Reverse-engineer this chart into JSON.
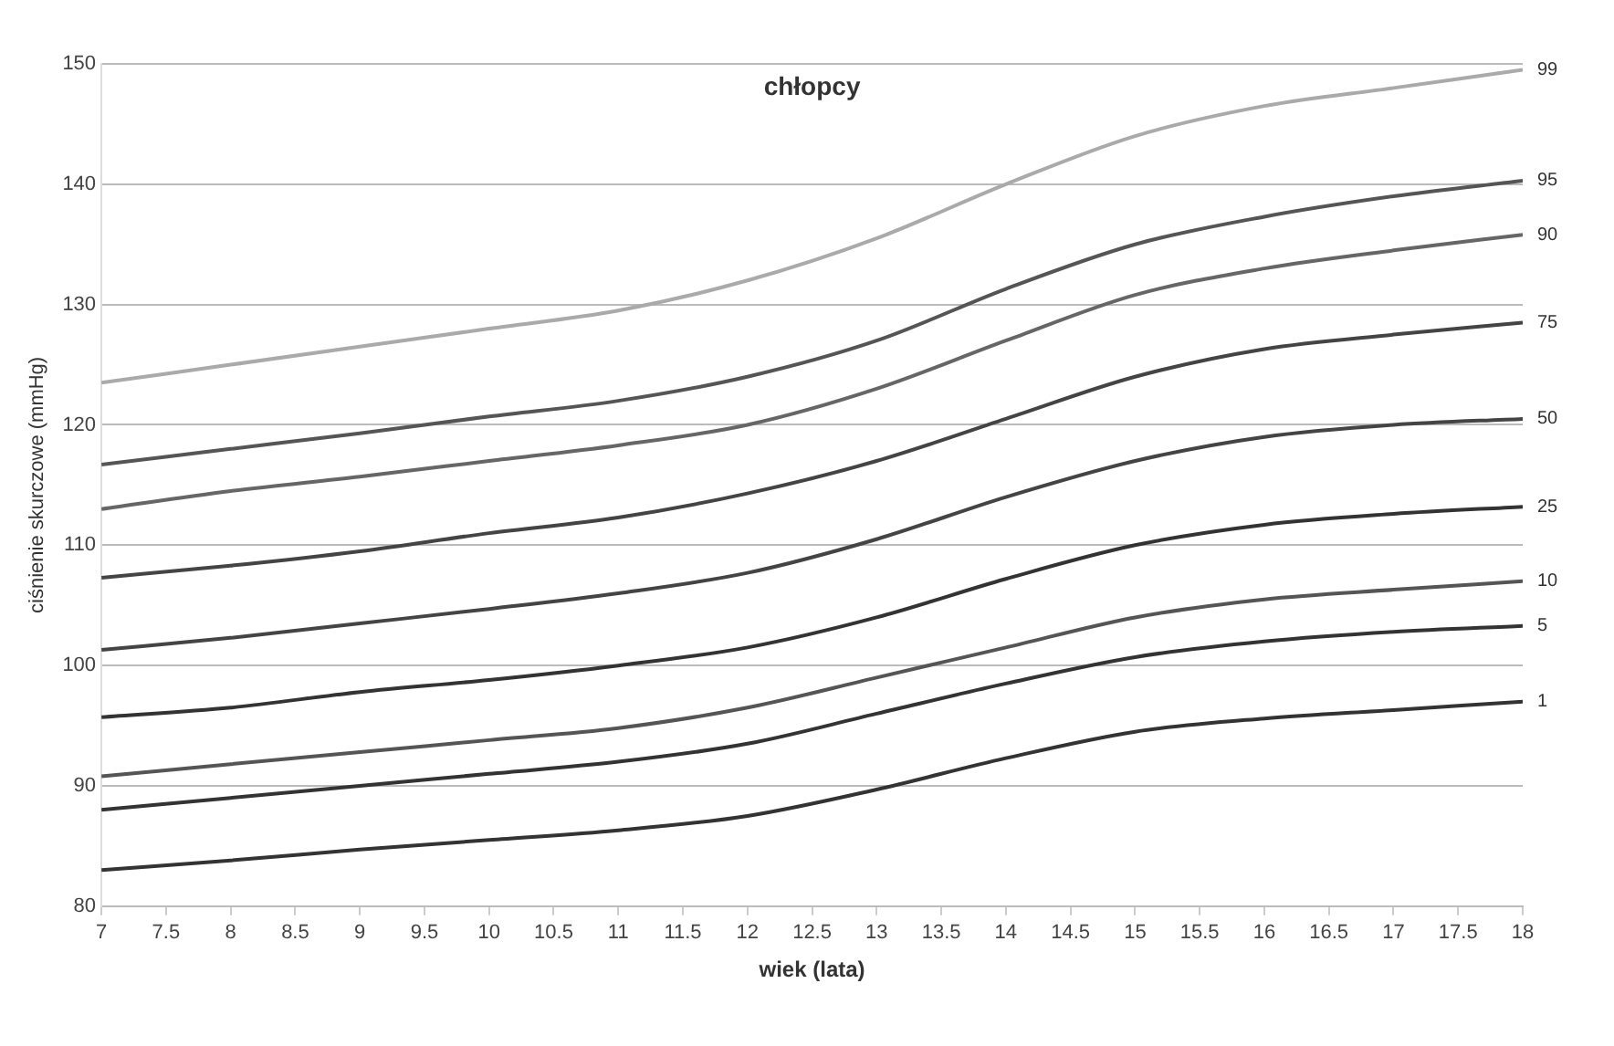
{
  "chart_data": {
    "type": "line",
    "title": "chłopcy",
    "xlabel": "wiek (lata)",
    "ylabel": "ciśnienie skurczowe (mmHg)",
    "x": [
      7,
      8,
      9,
      10,
      11,
      12,
      13,
      14,
      15,
      16,
      17,
      18
    ],
    "xlim": [
      7,
      18
    ],
    "xticks": [
      7,
      7.5,
      8,
      8.5,
      9,
      9.5,
      10,
      10.5,
      11,
      11.5,
      12,
      12.5,
      13,
      13.5,
      14,
      14.5,
      15,
      15.5,
      16,
      16.5,
      17,
      17.5,
      18
    ],
    "ylim": [
      80,
      150
    ],
    "yticks": [
      80,
      90,
      100,
      110,
      120,
      130,
      140,
      150
    ],
    "grid": "y",
    "legend": false,
    "marker": "none",
    "line_style": "solid",
    "series": [
      {
        "name": "99",
        "color": "#aaaaaa",
        "values": [
          123.5,
          125,
          126.5,
          128,
          129.5,
          132,
          135.5,
          140,
          144,
          146.5,
          148,
          149.5
        ]
      },
      {
        "name": "95",
        "color": "#555555",
        "values": [
          116.7,
          118,
          119.3,
          120.7,
          122,
          124,
          127,
          131.3,
          135,
          137.3,
          139,
          140.3
        ]
      },
      {
        "name": "90",
        "color": "#666666",
        "values": [
          113,
          114.5,
          115.7,
          117,
          118.3,
          120,
          123,
          127,
          130.8,
          133,
          134.5,
          135.8
        ]
      },
      {
        "name": "75",
        "color": "#444444",
        "values": [
          107.3,
          108.3,
          109.5,
          111,
          112.3,
          114.3,
          117,
          120.5,
          124,
          126.3,
          127.5,
          128.5
        ]
      },
      {
        "name": "50",
        "color": "#444444",
        "values": [
          101.3,
          102.3,
          103.5,
          104.7,
          106,
          107.7,
          110.5,
          114,
          117,
          119,
          120,
          120.5
        ]
      },
      {
        "name": "25",
        "color": "#333333",
        "values": [
          95.7,
          96.5,
          97.8,
          98.8,
          100,
          101.5,
          104,
          107.2,
          110,
          111.7,
          112.6,
          113.2
        ]
      },
      {
        "name": "10",
        "color": "#555555",
        "values": [
          90.8,
          91.8,
          92.8,
          93.8,
          94.8,
          96.5,
          99,
          101.5,
          104,
          105.5,
          106.3,
          107
        ]
      },
      {
        "name": "5",
        "color": "#333333",
        "values": [
          88,
          89,
          90,
          91,
          92,
          93.5,
          96,
          98.5,
          100.7,
          102,
          102.8,
          103.3
        ]
      },
      {
        "name": "1",
        "color": "#333333",
        "values": [
          83,
          83.8,
          84.7,
          85.5,
          86.3,
          87.5,
          89.7,
          92.3,
          94.5,
          95.6,
          96.3,
          97
        ]
      }
    ]
  }
}
